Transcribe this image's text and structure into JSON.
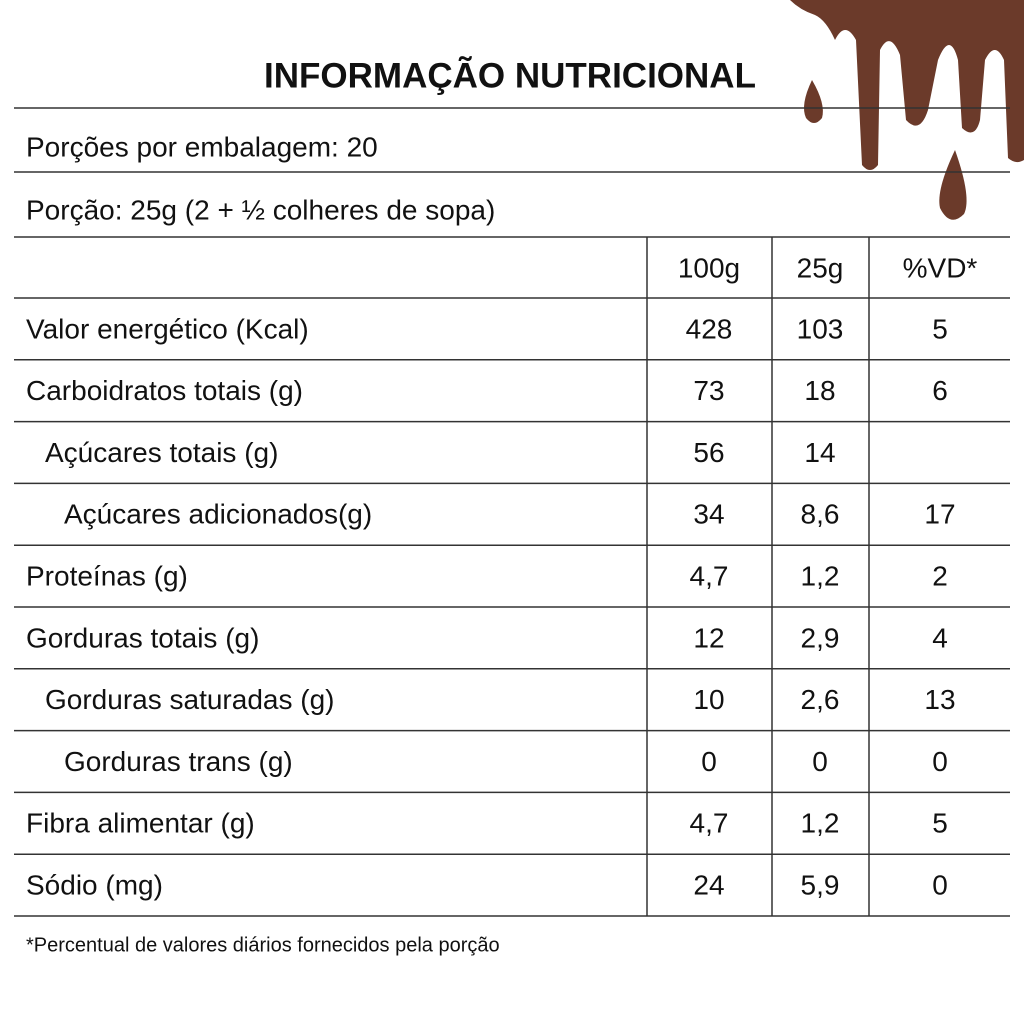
{
  "header": {
    "title": "INFORMAÇÃO NUTRICIONAL",
    "servings": "Porções por embalagem: 20",
    "portion": "Porção: 25g (2 + ½ colheres de sopa)"
  },
  "table": {
    "columns": [
      "100g",
      "25g",
      "%VD*"
    ],
    "rows": [
      [
        "Valor energético (Kcal)",
        "428",
        "103",
        "5"
      ],
      [
        "Carboidratos totais (g)",
        "73",
        "18",
        "6"
      ],
      [
        "Açúcares totais (g)",
        "56",
        "14"
      ],
      [
        "Açúcares adicionados(g)",
        "34",
        "8,6",
        "17"
      ],
      [
        "Proteínas (g)",
        "4,7",
        "1,2",
        "2"
      ],
      [
        "Gorduras totais (g)",
        "12",
        "2,9",
        "4"
      ],
      [
        "Gorduras saturadas (g)",
        "10",
        "2,6",
        "13"
      ],
      [
        "Gorduras trans (g)",
        "0",
        "0",
        "0"
      ],
      [
        "Fibra alimentar (g)",
        "4,7",
        "1,2",
        "5"
      ],
      [
        "Sódio (mg)",
        "24",
        "5,9",
        "0"
      ]
    ]
  },
  "footnote": "*Percentual de valores diários fornecidos pela porção"
}
